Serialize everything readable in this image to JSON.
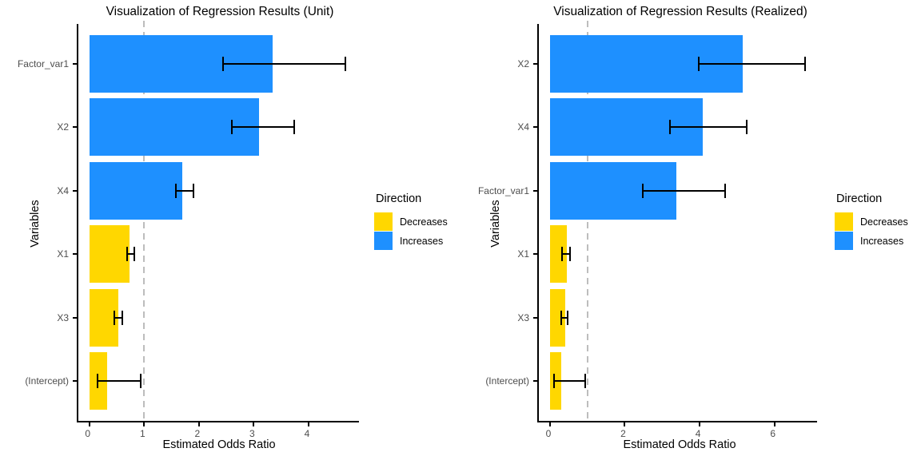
{
  "style": {
    "background": "#FFFFFF",
    "bar_colors": {
      "Increases": "#1E90FF",
      "Decreases": "#FFD700"
    },
    "reference_line_color": "#BDBDBD",
    "axis_color": "#000000",
    "tick_label_color": "#4D4D4D",
    "error_bar_color": "#000000"
  },
  "chart_data": [
    {
      "type": "bar",
      "orientation": "horizontal",
      "title": "Visualization of Regression Results (Unit)",
      "xlabel": "Estimated Odds Ratio",
      "ylabel": "Variables",
      "categories": [
        "Factor_var1",
        "X2",
        "X4",
        "X1",
        "X3",
        "(Intercept)"
      ],
      "values": [
        3.35,
        3.1,
        1.69,
        0.74,
        0.53,
        0.33
      ],
      "ci_low": [
        2.43,
        2.59,
        1.56,
        0.68,
        0.44,
        0.13
      ],
      "ci_high": [
        4.68,
        3.76,
        1.91,
        0.83,
        0.62,
        0.95
      ],
      "directions": [
        "Increases",
        "Increases",
        "Increases",
        "Decreases",
        "Decreases",
        "Decreases"
      ],
      "x_ticks": [
        0,
        1,
        2,
        3,
        4
      ],
      "xlim": [
        -0.23,
        4.92
      ],
      "reference_line_x": 1,
      "grid": false,
      "legend": {
        "title": "Direction",
        "position": "right",
        "items": [
          {
            "label": "Decreases",
            "color": "#FFD700"
          },
          {
            "label": "Increases",
            "color": "#1E90FF"
          }
        ]
      }
    },
    {
      "type": "bar",
      "orientation": "horizontal",
      "title": "Visualization of Regression Results (Realized)",
      "xlabel": "Estimated Odds Ratio",
      "ylabel": "Variables",
      "categories": [
        "X2",
        "X4",
        "Factor_var1",
        "X1",
        "X3",
        "(Intercept)"
      ],
      "values": [
        5.15,
        4.08,
        3.37,
        0.45,
        0.4,
        0.31
      ],
      "ci_low": [
        3.95,
        3.18,
        2.45,
        0.31,
        0.27,
        0.09
      ],
      "ci_high": [
        6.85,
        5.28,
        4.71,
        0.56,
        0.5,
        0.96
      ],
      "directions": [
        "Increases",
        "Increases",
        "Increases",
        "Decreases",
        "Decreases",
        "Decreases"
      ],
      "x_ticks": [
        0,
        2,
        4,
        6
      ],
      "xlim": [
        -0.34,
        7.14
      ],
      "reference_line_x": 1,
      "grid": false,
      "legend": {
        "title": "Direction",
        "position": "right",
        "items": [
          {
            "label": "Decreases",
            "color": "#FFD700"
          },
          {
            "label": "Increases",
            "color": "#1E90FF"
          }
        ]
      }
    }
  ]
}
